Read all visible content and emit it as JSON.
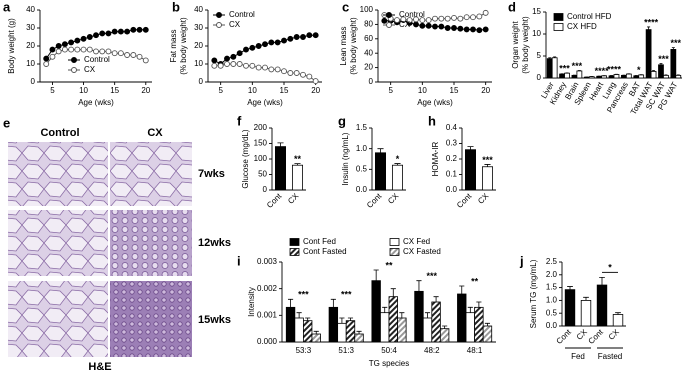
{
  "chart_data": [
    {
      "panel": "a",
      "type": "line",
      "ylabel": [
        "Body weight (g)"
      ],
      "xlabel": "Age (wks)",
      "x": [
        4,
        5,
        6,
        7,
        8,
        9,
        10,
        11,
        12,
        13,
        14,
        15,
        16,
        17,
        18,
        19,
        20
      ],
      "xlim": [
        3,
        21
      ],
      "xticks": [
        5,
        10,
        15,
        20
      ],
      "ylim": [
        0,
        40
      ],
      "yticks": [
        0,
        10,
        20,
        30,
        40
      ],
      "legend": "lower center",
      "series": [
        {
          "name": "Control",
          "color": "#000000",
          "marker_fill": "#000000",
          "values": [
            13,
            18,
            20,
            21,
            22,
            23,
            24,
            25,
            26,
            27,
            27,
            28,
            28,
            28,
            29,
            29,
            29
          ]
        },
        {
          "name": "CX",
          "color": "#555555",
          "marker_fill": "#ffffff",
          "values": [
            10,
            14,
            17,
            18,
            18,
            18,
            18,
            18,
            17,
            17,
            17,
            16,
            16,
            15,
            15,
            14,
            12
          ]
        }
      ]
    },
    {
      "panel": "b",
      "type": "line",
      "ylabel": [
        "Fat mass",
        "(% body weight)"
      ],
      "xlabel": "Age (wks)",
      "x": [
        4,
        5,
        6,
        7,
        8,
        9,
        10,
        11,
        12,
        13,
        14,
        15,
        16,
        17,
        18,
        19,
        20
      ],
      "xlim": [
        3,
        21
      ],
      "xticks": [
        5,
        10,
        15,
        20
      ],
      "ylim": [
        0,
        40
      ],
      "yticks": [
        0,
        10,
        20,
        30,
        40
      ],
      "legend": "upper left",
      "series": [
        {
          "name": "Control",
          "color": "#000000",
          "marker_fill": "#000000",
          "values": [
            12,
            10,
            13,
            14,
            16,
            18,
            19,
            20,
            21,
            22,
            22,
            23,
            24,
            25,
            25,
            26,
            26
          ]
        },
        {
          "name": "CX",
          "color": "#555555",
          "marker_fill": "#ffffff",
          "values": [
            9,
            9,
            10,
            10,
            10,
            9,
            9,
            8,
            8,
            7,
            7,
            6,
            5,
            5,
            4,
            3,
            0.5
          ]
        }
      ]
    },
    {
      "panel": "c",
      "type": "line",
      "ylabel": [
        "Lean mass",
        "(% body weight)"
      ],
      "xlabel": "Age (wks)",
      "x": [
        4,
        5,
        6,
        7,
        8,
        9,
        10,
        11,
        12,
        13,
        14,
        15,
        16,
        17,
        18,
        19,
        20
      ],
      "xlim": [
        3,
        21
      ],
      "xticks": [
        5,
        10,
        15,
        20
      ],
      "ylim": [
        0,
        100
      ],
      "yticks": [
        0,
        20,
        40,
        60,
        80,
        100
      ],
      "legend": "upper left",
      "series": [
        {
          "name": "Control",
          "color": "#000000",
          "marker_fill": "#000000",
          "values": [
            85,
            85,
            83,
            86,
            82,
            80,
            78,
            78,
            77,
            77,
            75,
            75,
            74,
            73,
            73,
            72,
            73
          ]
        },
        {
          "name": "CX",
          "color": "#555555",
          "marker_fill": "#ffffff",
          "values": [
            93,
            88,
            86,
            87,
            86,
            87,
            86,
            86,
            88,
            88,
            88,
            89,
            88,
            90,
            90,
            91,
            96
          ]
        }
      ]
    },
    {
      "panel": "d",
      "type": "bar",
      "ylabel": [
        "Organ weight",
        "(% body weight)"
      ],
      "categories": [
        "Liver",
        "Kidney",
        "Brain",
        "Spleen",
        "Heart",
        "Lung",
        "Pancreas",
        "BAT",
        "Total WAT",
        "SC WAT",
        "PG WAT"
      ],
      "ylim": [
        0,
        15
      ],
      "yticks": [
        0,
        5,
        10,
        15
      ],
      "legend": "upper left",
      "series": [
        {
          "name": "Control HFD",
          "color": "#000000",
          "values": [
            4.4,
            0.9,
            0.6,
            0.2,
            0.4,
            0.5,
            0.6,
            0.5,
            11,
            3,
            6.5
          ],
          "errors": [
            0.2,
            0.05,
            0.05,
            0.03,
            0.03,
            0.05,
            0.05,
            0.05,
            0.6,
            0.3,
            0.4
          ]
        },
        {
          "name": "CX HFD",
          "color": "#ffffff",
          "values": [
            4.6,
            1.1,
            1.6,
            0.3,
            0.5,
            0.8,
            0.9,
            0.7,
            1.5,
            0.6,
            0.6
          ],
          "errors": [
            0.2,
            0.05,
            0.1,
            0.03,
            0.03,
            0.05,
            0.05,
            0.05,
            0.2,
            0.1,
            0.1
          ]
        }
      ],
      "significance": [
        null,
        "***",
        "***",
        null,
        "****",
        "****",
        null,
        "*",
        "****",
        "***",
        "***"
      ]
    },
    {
      "panel": "f",
      "type": "bar",
      "ylabel": [
        "Glucose (mg/dL)"
      ],
      "categories": [
        "Cont",
        "CX"
      ],
      "values": [
        140,
        80
      ],
      "errors": [
        12,
        5
      ],
      "colors": [
        "#000000",
        "#ffffff"
      ],
      "significance": [
        null,
        "**"
      ],
      "ylim": [
        0,
        200
      ],
      "yticks": [
        0,
        50,
        100,
        150,
        200
      ]
    },
    {
      "panel": "g",
      "type": "bar",
      "ylabel": [
        "Insulin (ng/mL)"
      ],
      "categories": [
        "Cont",
        "CX"
      ],
      "values": [
        0.9,
        0.6
      ],
      "errors": [
        0.1,
        0.04
      ],
      "colors": [
        "#000000",
        "#ffffff"
      ],
      "significance": [
        null,
        "*"
      ],
      "ylim": [
        0,
        1.5
      ],
      "yticks": [
        {
          "value": 0,
          "label": "0.0"
        },
        0.5,
        {
          "value": 1,
          "label": "1.0"
        },
        1.5
      ]
    },
    {
      "panel": "h",
      "type": "bar",
      "ylabel": [
        "HOMA-IR"
      ],
      "categories": [
        "Cont",
        "CX"
      ],
      "values": [
        0.26,
        0.15
      ],
      "errors": [
        0.02,
        0.015
      ],
      "colors": [
        "#000000",
        "#ffffff"
      ],
      "significance": [
        null,
        "***"
      ],
      "ylim": [
        0,
        0.4
      ],
      "yticks": [
        {
          "value": 0,
          "label": "0.0"
        },
        0.1,
        0.2,
        0.3,
        0.4
      ]
    },
    {
      "panel": "i",
      "type": "bar",
      "ylabel": [
        "Intensity"
      ],
      "xlabel": "TG species",
      "categories": [
        "53:3",
        "51:3",
        "50:4",
        "48:2",
        "48:1"
      ],
      "ylim": [
        0,
        0.003
      ],
      "yticks": [
        {
          "value": 0,
          "label": "0.000"
        },
        0.001,
        0.002,
        0.003
      ],
      "legend": "upper center",
      "legend_columns": 2,
      "series": [
        {
          "name": "Cont Fed",
          "color": "#000000",
          "hatch": false,
          "values": [
            0.0013,
            0.0013,
            0.0023,
            0.0019,
            0.0018
          ],
          "errors": [
            0.0003,
            0.0003,
            0.0004,
            0.0004,
            0.0003
          ]
        },
        {
          "name": "CX Fed",
          "color": "#ffffff",
          "hatch": false,
          "values": [
            0.0009,
            0.0007,
            0.0011,
            0.0009,
            0.0011
          ],
          "errors": [
            0.0002,
            0.0002,
            0.0002,
            0.0002,
            0.0002
          ]
        },
        {
          "name": "Cont Fasted",
          "color": "#222222",
          "hatch": true,
          "values": [
            0.0008,
            0.0008,
            0.0017,
            0.0015,
            0.0013
          ],
          "errors": [
            0.0001,
            0.0001,
            0.0003,
            0.0002,
            0.0002
          ]
        },
        {
          "name": "CX Fasted",
          "color": "#999999",
          "hatch": true,
          "values": [
            0.0003,
            0.0003,
            0.0009,
            0.0005,
            0.0006
          ],
          "errors": [
            0.0001,
            0.0001,
            0.0002,
            0.0001,
            0.0001
          ]
        }
      ],
      "significance": [
        "***",
        "***",
        "**",
        "***",
        "**"
      ]
    },
    {
      "panel": "j",
      "type": "bar",
      "ylabel": [
        "Serum TG (mg/mL)"
      ],
      "categories": [
        "Cont",
        "CX",
        "Cont",
        "CX"
      ],
      "values": [
        1.42,
        1.0,
        1.6,
        0.45
      ],
      "errors": [
        0.12,
        0.12,
        0.3,
        0.07
      ],
      "colors": [
        "#000000",
        "#ffffff",
        "#000000",
        "#ffffff"
      ],
      "significance": [
        null,
        null,
        null,
        "*"
      ],
      "bracket": true,
      "group_labels": [
        "Fed",
        "Fasted"
      ],
      "ylim": [
        0,
        2.5
      ],
      "yticks": [
        {
          "value": 0,
          "label": "0.0"
        },
        0.5,
        {
          "value": 1,
          "label": "1.0"
        },
        1.5,
        {
          "value": 2,
          "label": "2.0"
        },
        2.5
      ]
    }
  ],
  "histology": {
    "panel": "e",
    "columns": [
      "Control",
      "CX"
    ],
    "rows": [
      "7wks",
      "12wks",
      "15wks"
    ],
    "stain": "H&E"
  }
}
